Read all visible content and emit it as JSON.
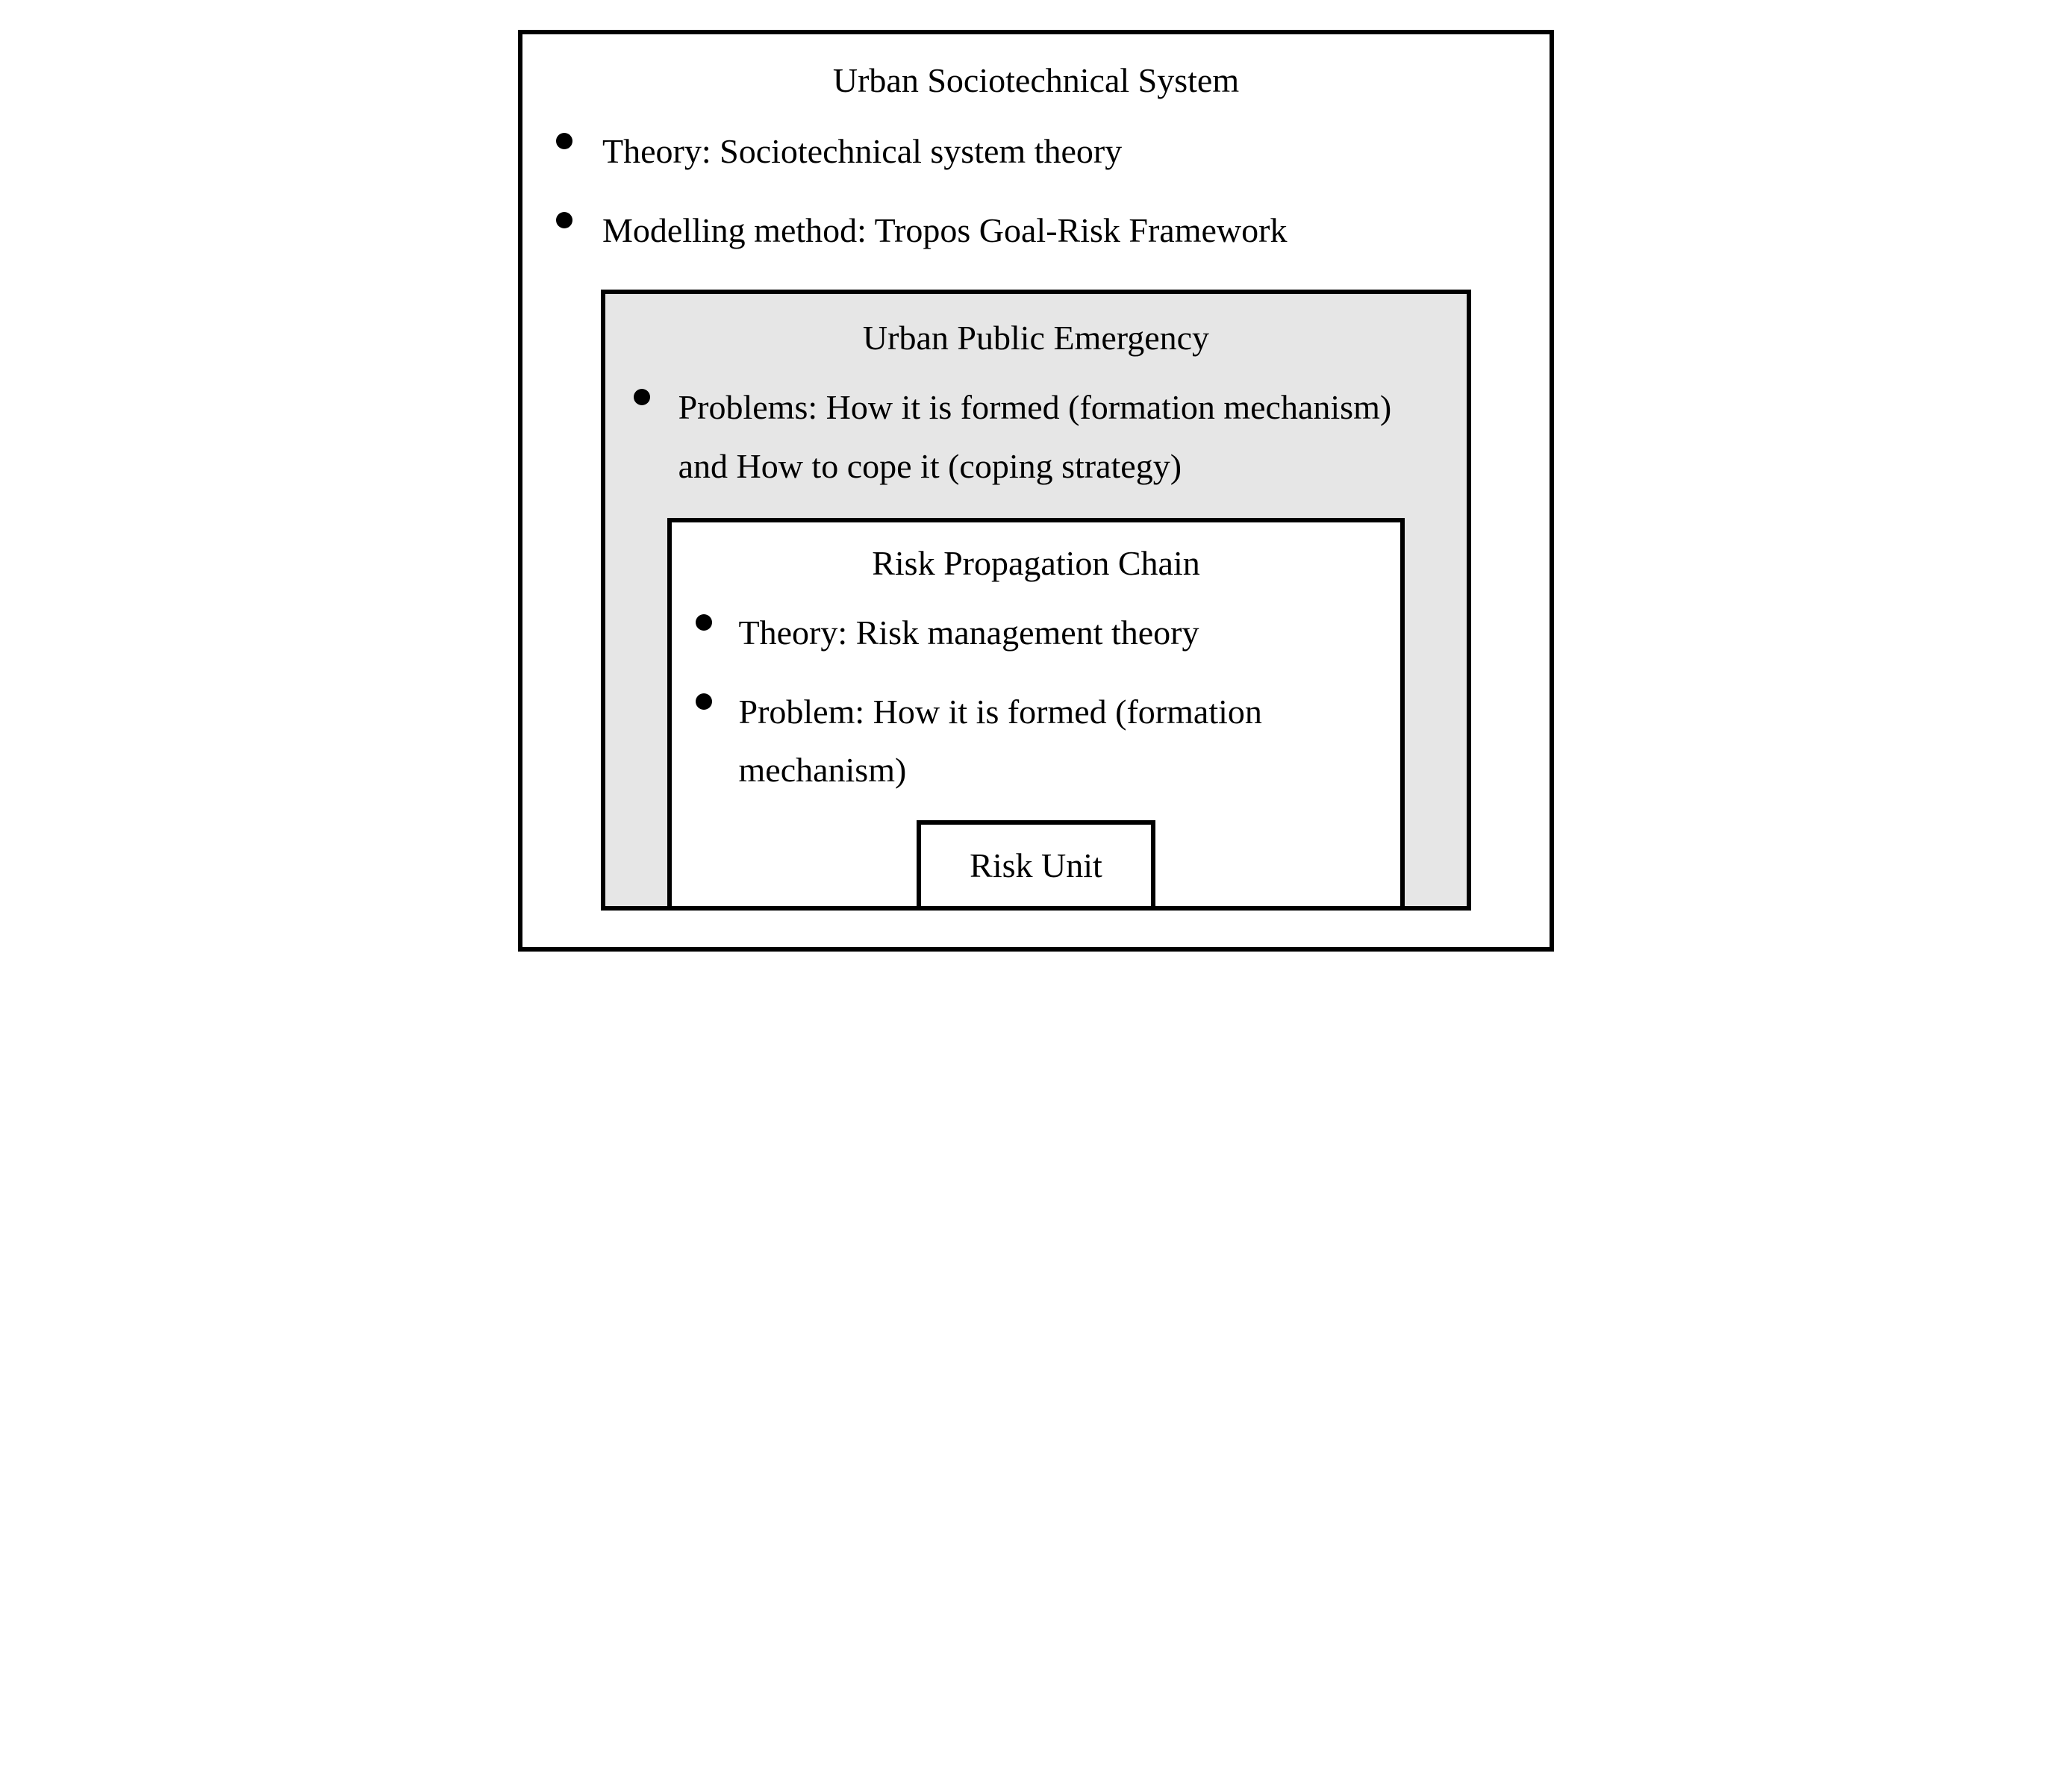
{
  "diagram": {
    "outer": {
      "title": "Urban Sociotechnical System",
      "bullets": [
        "Theory: Sociotechnical system theory",
        "Modelling method: Tropos Goal-Risk Framework"
      ],
      "border_color": "#000000",
      "border_width": 6,
      "background": "#ffffff",
      "font_family": "Times New Roman",
      "title_fontsize": 46,
      "text_fontsize": 46
    },
    "middle": {
      "title": "Urban Public Emergency",
      "bullets": [
        "Problems: How it is formed (formation mechanism) and How to cope it (coping strategy)"
      ],
      "border_color": "#000000",
      "border_width": 6,
      "background": "#e6e6e6"
    },
    "inner": {
      "title": "Risk Propagation Chain",
      "bullets": [
        "Theory: Risk management theory",
        "Problem: How it is formed (formation mechanism)"
      ],
      "border_color": "#000000",
      "border_width": 6,
      "background": "#ffffff"
    },
    "innermost": {
      "label": "Risk Unit",
      "border_color": "#000000",
      "border_width": 6,
      "background": "#ffffff"
    },
    "bullet_style": {
      "shape": "circle",
      "color": "#000000",
      "size": 22
    }
  }
}
